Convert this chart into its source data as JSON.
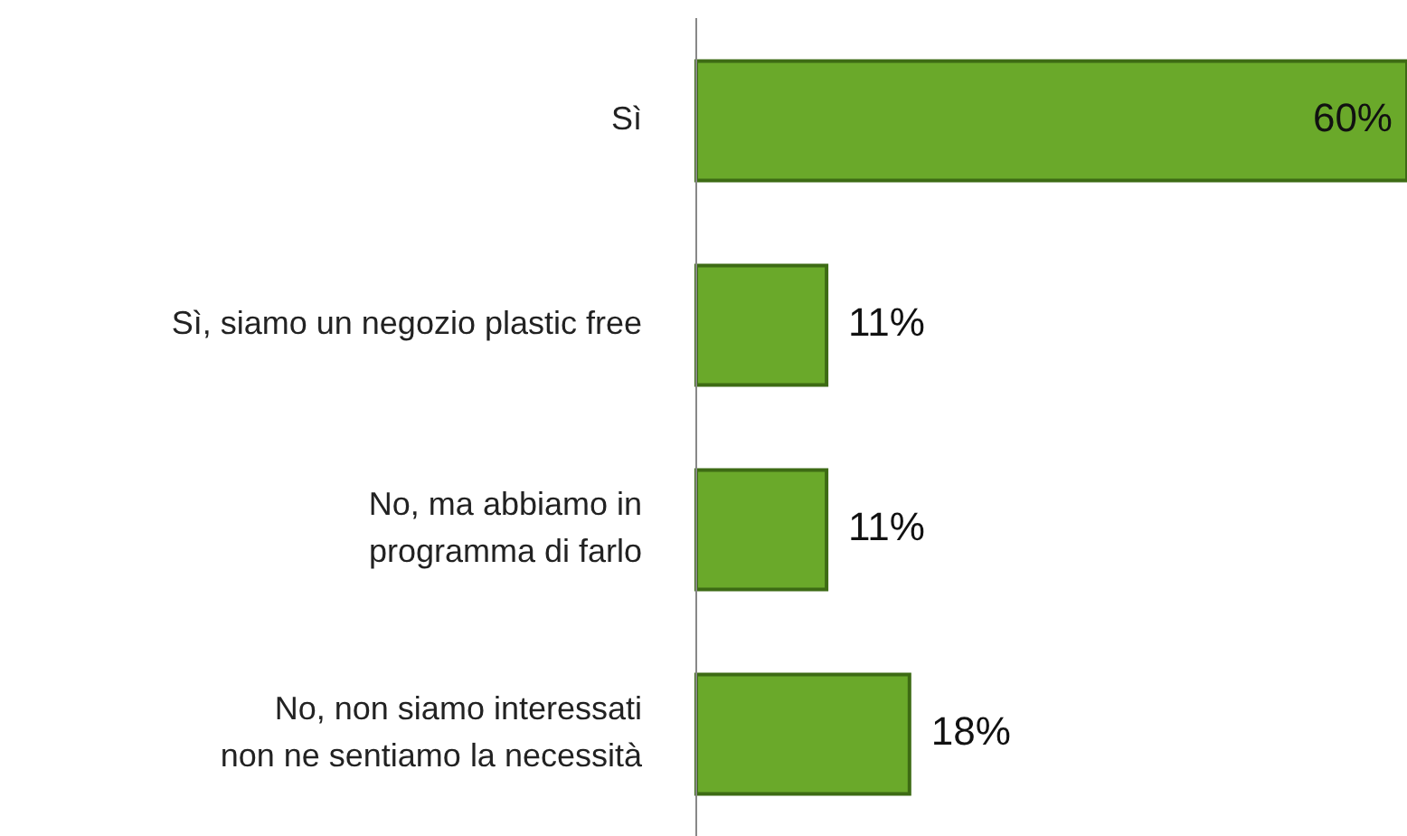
{
  "chart_data": {
    "type": "bar",
    "orientation": "horizontal",
    "categories": [
      "Sì",
      "Sì, siamo un negozio plastic free",
      "No, ma abbiamo in\nprogramma di farlo",
      "No, non siamo interessati\nnon ne sentiamo la necessità"
    ],
    "values": [
      60,
      11,
      11,
      18
    ],
    "value_labels": [
      "60%",
      "11%",
      "11%",
      "18%"
    ],
    "color": "#6aa92a",
    "grid": false,
    "legend": false
  }
}
